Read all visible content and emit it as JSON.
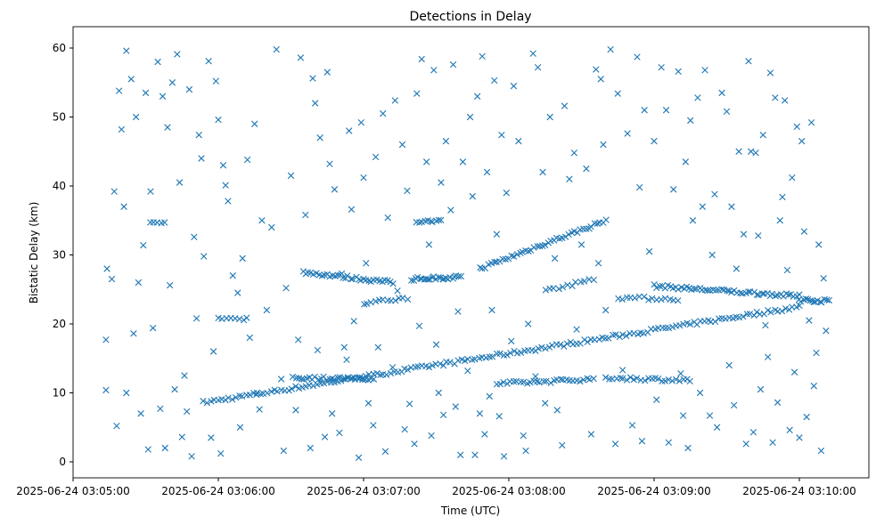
{
  "chart_data": {
    "type": "scatter",
    "title": "Detections in Delay",
    "xlabel": "Time (UTC)",
    "ylabel": "Bistatic Delay (km)",
    "x_unit": "seconds after 2025-06-24 03:05:00",
    "xlim": [
      -13,
      315
    ],
    "ylim": [
      -2.3,
      63.3
    ],
    "marker": "x",
    "color": "#1f77b4",
    "grid": false,
    "x_ticks": [
      {
        "value": 0,
        "label": "2025-06-24 03:05:00"
      },
      {
        "value": 60,
        "label": "2025-06-24 03:06:00"
      },
      {
        "value": 120,
        "label": "2025-06-24 03:07:00"
      },
      {
        "value": 180,
        "label": "2025-06-24 03:08:00"
      },
      {
        "value": 240,
        "label": "2025-06-24 03:09:00"
      },
      {
        "value": 300,
        "label": "2025-06-24 03:10:00"
      }
    ],
    "y_ticks": [
      {
        "value": 0,
        "label": "0"
      },
      {
        "value": 10,
        "label": "10"
      },
      {
        "value": 20,
        "label": "20"
      },
      {
        "value": 30,
        "label": "30"
      },
      {
        "value": 40,
        "label": "40"
      },
      {
        "value": 50,
        "label": "50"
      },
      {
        "value": 60,
        "label": "60"
      }
    ],
    "tracks": [
      {
        "t": [
          54,
          300
        ],
        "km": [
          8.6,
          22.5
        ],
        "n": 170
      },
      {
        "t": [
          95,
          132
        ],
        "km": [
          27.5,
          26.0
        ],
        "n": 35
      },
      {
        "t": [
          91,
          124
        ],
        "km": [
          12.2,
          12.0
        ],
        "n": 30
      },
      {
        "t": [
          168,
          220
        ],
        "km": [
          28.0,
          35.0
        ],
        "n": 45
      },
      {
        "t": [
          240,
          300
        ],
        "km": [
          25.5,
          24.0
        ],
        "n": 55
      },
      {
        "t": [
          220,
          255
        ],
        "km": [
          12.2,
          11.8
        ],
        "n": 25
      },
      {
        "t": [
          175,
          215
        ],
        "km": [
          11.3,
          12.0
        ],
        "n": 30
      },
      {
        "t": [
          140,
          160
        ],
        "km": [
          26.5,
          26.8
        ],
        "n": 25
      },
      {
        "t": [
          142,
          152
        ],
        "km": [
          34.8,
          34.9
        ],
        "n": 10
      },
      {
        "t": [
          32,
          38
        ],
        "km": [
          34.7,
          34.7
        ],
        "n": 5
      },
      {
        "t": [
          300,
          312
        ],
        "km": [
          23.5,
          23.3
        ],
        "n": 15
      },
      {
        "t": [
          60,
          72
        ],
        "km": [
          20.8,
          20.8
        ],
        "n": 8
      },
      {
        "t": [
          120,
          138
        ],
        "km": [
          23.0,
          23.8
        ],
        "n": 12
      },
      {
        "t": [
          225,
          250
        ],
        "km": [
          23.8,
          23.6
        ],
        "n": 15
      },
      {
        "t": [
          195,
          215
        ],
        "km": [
          24.8,
          26.5
        ],
        "n": 12
      }
    ],
    "points": [
      [
        13.6,
        17.7
      ],
      [
        13.6,
        10.4
      ],
      [
        14,
        28
      ],
      [
        16,
        26.5
      ],
      [
        17,
        39.2
      ],
      [
        18,
        5.2
      ],
      [
        19,
        53.8
      ],
      [
        20,
        48.2
      ],
      [
        21,
        37
      ],
      [
        22,
        10
      ],
      [
        22,
        59.6
      ],
      [
        24,
        55.5
      ],
      [
        25,
        18.6
      ],
      [
        26,
        50
      ],
      [
        27,
        26
      ],
      [
        28,
        7
      ],
      [
        29,
        31.4
      ],
      [
        30,
        53.5
      ],
      [
        31,
        1.8
      ],
      [
        32,
        39.2
      ],
      [
        33,
        19.4
      ],
      [
        35,
        58
      ],
      [
        36,
        7.7
      ],
      [
        37,
        53
      ],
      [
        38,
        2
      ],
      [
        39,
        48.5
      ],
      [
        40,
        25.6
      ],
      [
        41,
        55
      ],
      [
        42,
        10.5
      ],
      [
        43,
        59.1
      ],
      [
        44,
        40.5
      ],
      [
        45,
        3.6
      ],
      [
        46,
        12.5
      ],
      [
        47,
        7.3
      ],
      [
        48,
        54
      ],
      [
        49,
        0.8
      ],
      [
        50,
        32.6
      ],
      [
        51,
        20.8
      ],
      [
        52,
        47.4
      ],
      [
        53,
        44
      ],
      [
        54,
        29.8
      ],
      [
        56,
        58.1
      ],
      [
        57,
        3.5
      ],
      [
        58,
        16
      ],
      [
        59,
        55.2
      ],
      [
        60,
        49.6
      ],
      [
        61,
        1.2
      ],
      [
        62,
        43
      ],
      [
        63,
        40.1
      ],
      [
        64,
        37.8
      ],
      [
        66,
        27
      ],
      [
        68,
        24.5
      ],
      [
        69,
        5
      ],
      [
        70,
        29.5
      ],
      [
        72,
        43.8
      ],
      [
        73,
        18
      ],
      [
        75,
        49
      ],
      [
        76,
        10
      ],
      [
        77,
        7.6
      ],
      [
        78,
        35
      ],
      [
        80,
        22
      ],
      [
        82,
        34
      ],
      [
        84,
        59.8
      ],
      [
        86,
        12
      ],
      [
        87,
        1.6
      ],
      [
        88,
        25.2
      ],
      [
        90,
        41.5
      ],
      [
        92,
        7.5
      ],
      [
        93,
        17.7
      ],
      [
        94,
        58.6
      ],
      [
        96,
        35.8
      ],
      [
        98,
        2
      ],
      [
        99,
        55.6
      ],
      [
        100,
        52
      ],
      [
        101,
        16.2
      ],
      [
        102,
        47
      ],
      [
        104,
        3.6
      ],
      [
        105,
        56.5
      ],
      [
        106,
        43.2
      ],
      [
        107,
        7
      ],
      [
        108,
        39.5
      ],
      [
        110,
        4.2
      ],
      [
        111,
        27.3
      ],
      [
        112,
        16.6
      ],
      [
        113,
        14.8
      ],
      [
        114,
        48
      ],
      [
        115,
        36.6
      ],
      [
        116,
        20.4
      ],
      [
        118,
        0.6
      ],
      [
        119,
        49.2
      ],
      [
        120,
        41.2
      ],
      [
        121,
        28.8
      ],
      [
        122,
        8.5
      ],
      [
        124,
        5.3
      ],
      [
        125,
        44.2
      ],
      [
        126,
        16.6
      ],
      [
        128,
        50.5
      ],
      [
        129,
        1.5
      ],
      [
        130,
        35.4
      ],
      [
        132,
        13.7
      ],
      [
        133,
        52.4
      ],
      [
        134,
        24.8
      ],
      [
        136,
        46
      ],
      [
        137,
        4.7
      ],
      [
        138,
        39.3
      ],
      [
        139,
        8.4
      ],
      [
        141,
        2.6
      ],
      [
        142,
        53.4
      ],
      [
        143,
        19.7
      ],
      [
        144,
        58.4
      ],
      [
        146,
        43.5
      ],
      [
        147,
        31.5
      ],
      [
        148,
        3.8
      ],
      [
        149,
        56.8
      ],
      [
        150,
        17
      ],
      [
        151,
        10
      ],
      [
        152,
        40.5
      ],
      [
        153,
        6.8
      ],
      [
        154,
        46.5
      ],
      [
        156,
        36.5
      ],
      [
        157,
        57.6
      ],
      [
        158,
        8
      ],
      [
        159,
        21.8
      ],
      [
        160,
        1
      ],
      [
        161,
        43.5
      ],
      [
        163,
        13.2
      ],
      [
        164,
        50
      ],
      [
        165,
        38.5
      ],
      [
        166,
        1
      ],
      [
        167,
        53
      ],
      [
        168,
        7
      ],
      [
        169,
        58.8
      ],
      [
        170,
        4
      ],
      [
        171,
        42
      ],
      [
        172,
        9.5
      ],
      [
        173,
        22
      ],
      [
        174,
        55.3
      ],
      [
        175,
        33
      ],
      [
        176,
        6.6
      ],
      [
        177,
        47.4
      ],
      [
        178,
        0.8
      ],
      [
        179,
        39
      ],
      [
        181,
        17.5
      ],
      [
        182,
        54.5
      ],
      [
        184,
        46.5
      ],
      [
        186,
        3.8
      ],
      [
        187,
        1.6
      ],
      [
        188,
        20
      ],
      [
        190,
        59.2
      ],
      [
        191,
        12.4
      ],
      [
        192,
        57.2
      ],
      [
        194,
        42
      ],
      [
        195,
        8.5
      ],
      [
        197,
        50
      ],
      [
        199,
        29.5
      ],
      [
        200,
        7.5
      ],
      [
        202,
        2.4
      ],
      [
        203,
        51.6
      ],
      [
        205,
        41
      ],
      [
        207,
        44.8
      ],
      [
        208,
        19.2
      ],
      [
        210,
        31.5
      ],
      [
        212,
        42.5
      ],
      [
        214,
        4
      ],
      [
        216,
        56.9
      ],
      [
        217,
        28.8
      ],
      [
        218,
        55.5
      ],
      [
        219,
        46
      ],
      [
        220,
        22
      ],
      [
        222,
        59.8
      ],
      [
        224,
        2.6
      ],
      [
        225,
        53.4
      ],
      [
        227,
        13.3
      ],
      [
        229,
        47.6
      ],
      [
        231,
        5.3
      ],
      [
        233,
        58.7
      ],
      [
        234,
        39.8
      ],
      [
        235,
        3
      ],
      [
        236,
        51
      ],
      [
        238,
        30.5
      ],
      [
        240,
        46.5
      ],
      [
        241,
        9
      ],
      [
        243,
        57.2
      ],
      [
        245,
        51
      ],
      [
        246,
        2.8
      ],
      [
        248,
        39.5
      ],
      [
        250,
        56.6
      ],
      [
        251,
        12.8
      ],
      [
        252,
        6.7
      ],
      [
        253,
        43.5
      ],
      [
        254,
        2
      ],
      [
        255,
        49.5
      ],
      [
        256,
        35
      ],
      [
        258,
        52.8
      ],
      [
        259,
        10
      ],
      [
        260,
        37
      ],
      [
        261,
        56.8
      ],
      [
        263,
        6.7
      ],
      [
        264,
        30
      ],
      [
        265,
        38.8
      ],
      [
        266,
        5
      ],
      [
        268,
        53.5
      ],
      [
        270,
        50.8
      ],
      [
        271,
        14
      ],
      [
        272,
        37
      ],
      [
        273,
        8.2
      ],
      [
        274,
        28
      ],
      [
        275,
        45
      ],
      [
        277,
        33
      ],
      [
        278,
        2.6
      ],
      [
        279,
        58.1
      ],
      [
        280,
        45
      ],
      [
        281,
        4.3
      ],
      [
        282,
        44.8
      ],
      [
        283,
        32.8
      ],
      [
        284,
        10.5
      ],
      [
        285,
        47.4
      ],
      [
        286,
        19.8
      ],
      [
        287,
        15.2
      ],
      [
        288,
        56.4
      ],
      [
        289,
        2.8
      ],
      [
        290,
        52.8
      ],
      [
        291,
        8.6
      ],
      [
        292,
        35
      ],
      [
        293,
        38.4
      ],
      [
        294,
        52.4
      ],
      [
        295,
        27.8
      ],
      [
        296,
        4.6
      ],
      [
        297,
        41.2
      ],
      [
        298,
        13
      ],
      [
        299,
        48.6
      ],
      [
        300,
        3.5
      ],
      [
        301,
        46.5
      ],
      [
        302,
        33.4
      ],
      [
        303,
        6.5
      ],
      [
        304,
        20.5
      ],
      [
        305,
        49.2
      ],
      [
        306,
        11
      ],
      [
        307,
        15.8
      ],
      [
        308,
        31.5
      ],
      [
        309,
        1.6
      ],
      [
        310,
        26.6
      ],
      [
        311,
        19
      ]
    ]
  }
}
